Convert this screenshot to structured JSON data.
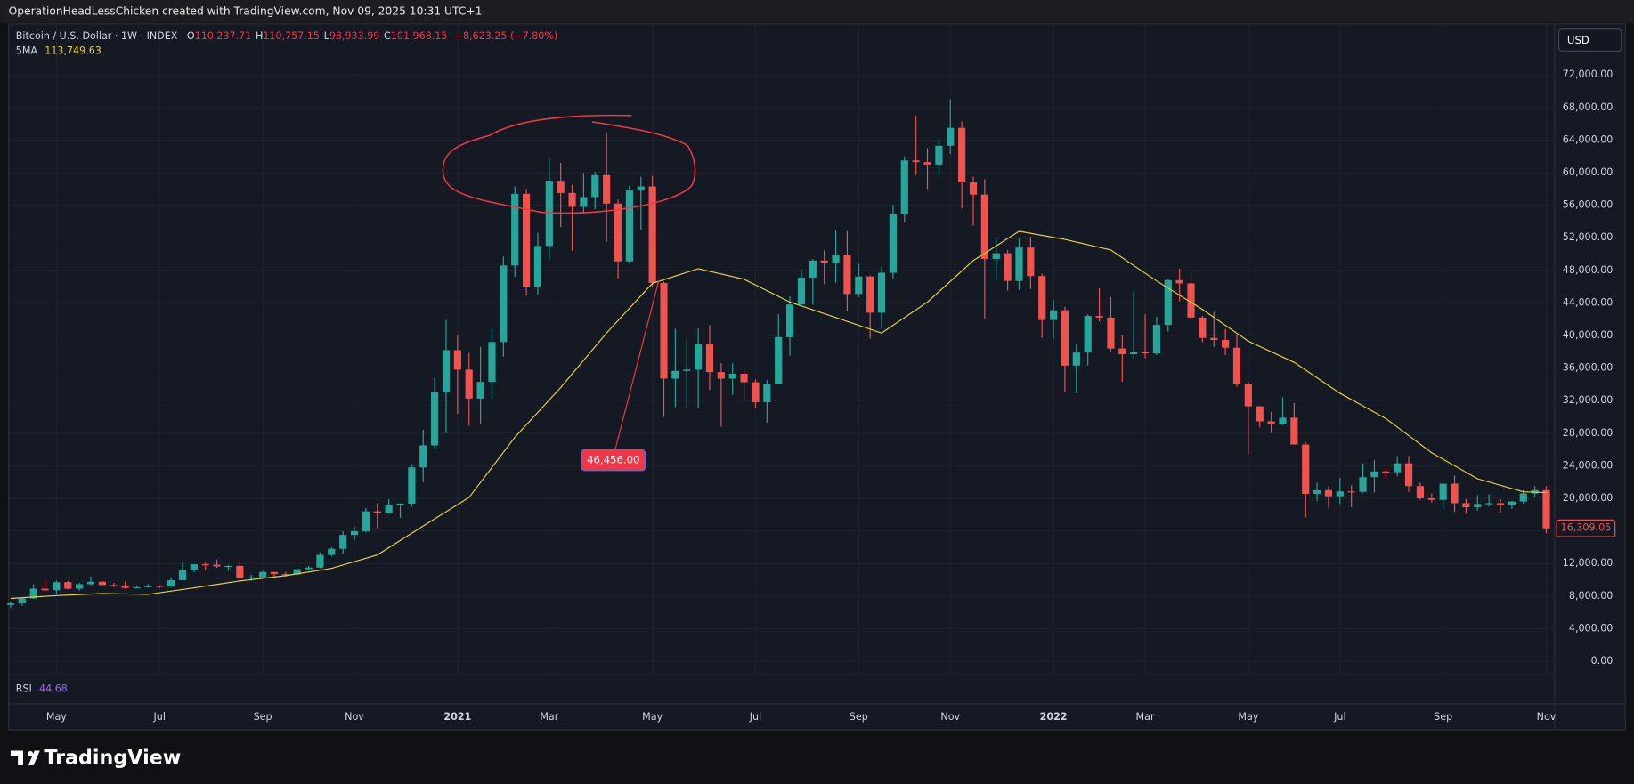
{
  "header": {
    "title": "OperationHeadLessChicken created with TradingView.com, Nov 09, 2025 10:31 UTC+1"
  },
  "footer": {
    "logo_text": "TradingView"
  },
  "chart_data": {
    "type": "candlestick",
    "symbol": "Bitcoin / U.S. Dollar · 1W · INDEX",
    "ohlc_legend": [
      {
        "key": "O",
        "value": "110,237.71"
      },
      {
        "key": "H",
        "value": "110,757.15"
      },
      {
        "key": "L",
        "value": "98,933.99"
      },
      {
        "key": "C",
        "value": "101,968.15"
      }
    ],
    "change": "−8,623.25 (−7.80%)",
    "currency": "USD",
    "rsi": {
      "name": "RSI",
      "value": "44.68"
    },
    "annotation": {
      "label": "46,456.00"
    },
    "last_price_label": "16,309.05",
    "up_color": "#26a69a",
    "down_color": "#ef5350",
    "grid": true,
    "categories": [
      null,
      null,
      null,
      null,
      "May",
      null,
      null,
      null,
      null,
      null,
      null,
      null,
      null,
      "Jul",
      null,
      null,
      null,
      null,
      null,
      null,
      null,
      null,
      "Sep",
      null,
      null,
      null,
      null,
      null,
      null,
      null,
      "Nov",
      null,
      null,
      null,
      null,
      null,
      null,
      null,
      null,
      "2021",
      null,
      null,
      null,
      null,
      null,
      null,
      null,
      "Mar",
      null,
      null,
      null,
      null,
      null,
      null,
      null,
      null,
      "May",
      null,
      null,
      null,
      null,
      null,
      null,
      null,
      null,
      "Jul",
      null,
      null,
      null,
      null,
      null,
      null,
      null,
      null,
      "Sep",
      null,
      null,
      null,
      null,
      null,
      null,
      null,
      "Nov",
      null,
      null,
      null,
      null,
      null,
      null,
      null,
      null,
      "2022",
      null,
      null,
      null,
      null,
      null,
      null,
      null,
      "Mar",
      null,
      null,
      null,
      null,
      null,
      null,
      null,
      null,
      "May",
      null,
      null,
      null,
      null,
      null,
      null,
      null,
      "Jul",
      null,
      null,
      null,
      null,
      null,
      null,
      null,
      null,
      "Sep",
      null,
      null,
      null,
      null,
      null,
      null,
      null,
      null,
      "Nov"
    ],
    "open": [
      6900,
      7100,
      7700,
      8900,
      8700,
      9700,
      8900,
      9450,
      9750,
      9350,
      9300,
      9000,
      9080,
      9240,
      9160,
      9950,
      11200,
      11900,
      11850,
      11650,
      11700,
      10250,
      10300,
      10950,
      10700,
      10650,
      11300,
      11500,
      13050,
      13800,
      15500,
      15950,
      18400,
      18200,
      19150,
      19350,
      23800,
      26500,
      33000,
      38200,
      35800,
      32250,
      34300,
      39200,
      48600,
      57400,
      46000,
      51000,
      59000,
      57500,
      55800,
      57000,
      59700,
      56200,
      49100,
      57800,
      58300,
      46450,
      34700,
      35650,
      35800,
      39000,
      35500,
      34700,
      35300,
      34250,
      31800,
      34000,
      39800,
      43800,
      47100,
      49200,
      48900,
      49900,
      45100,
      47250,
      42800,
      47700,
      54900,
      61500,
      61300,
      61000,
      63300,
      65500,
      58800,
      57300,
      49400,
      50100,
      46700,
      50800,
      47300,
      41900,
      43100,
      36300,
      37900,
      42400,
      42200,
      38400,
      37700,
      38000,
      37800,
      41300,
      46800,
      46400,
      42200,
      39700,
      39450,
      38500,
      34050,
      31300,
      29450,
      29100,
      29900,
      26600,
      20550,
      21000,
      20250,
      20850,
      20800,
      22600,
      23300,
      23200,
      24300,
      21500,
      20000,
      19800,
      21800,
      19400,
      18900,
      19300,
      19400,
      19200,
      19600,
      20600,
      21000
    ],
    "high": [
      7200,
      7750,
      9450,
      10000,
      9900,
      9850,
      9600,
      10400,
      9950,
      9600,
      9800,
      9300,
      9470,
      9300,
      10200,
      12100,
      11900,
      12100,
      12500,
      11800,
      12100,
      10600,
      11100,
      10980,
      10950,
      11450,
      11700,
      13350,
      14000,
      15950,
      16500,
      18800,
      19400,
      19900,
      19400,
      24200,
      28400,
      34800,
      41900,
      40100,
      37850,
      38600,
      40900,
      49700,
      58300,
      58000,
      52600,
      61700,
      61200,
      58500,
      60000,
      60100,
      64900,
      56700,
      58400,
      59500,
      59600,
      46600,
      40800,
      39500,
      40900,
      41300,
      36600,
      36600,
      35900,
      34600,
      34500,
      42600,
      44800,
      48100,
      49400,
      50500,
      52900,
      52800,
      48800,
      47350,
      48500,
      56000,
      62000,
      67000,
      63000,
      64300,
      69000,
      66300,
      59500,
      59200,
      51900,
      50500,
      51900,
      52100,
      47600,
      44400,
      43500,
      38900,
      42600,
      45800,
      44700,
      40000,
      45400,
      42600,
      42300,
      46900,
      48200,
      47400,
      42400,
      42900,
      40800,
      40000,
      34250,
      31300,
      30600,
      32400,
      31700,
      26900,
      21900,
      21500,
      22500,
      21600,
      24300,
      24700,
      23700,
      25200,
      25200,
      21900,
      20600,
      21800,
      22800,
      19900,
      20400,
      20500,
      19900,
      19700,
      21000,
      21500,
      21500
    ],
    "low": [
      6500,
      6800,
      7650,
      8600,
      8200,
      8800,
      8650,
      9300,
      9250,
      9100,
      8850,
      8950,
      9050,
      9000,
      9150,
      9900,
      10950,
      11150,
      11450,
      11100,
      9900,
      9850,
      10200,
      10150,
      10400,
      10550,
      11200,
      11400,
      12900,
      13200,
      14850,
      15800,
      16300,
      18100,
      17600,
      19000,
      22000,
      26000,
      28000,
      30400,
      28900,
      29200,
      32300,
      37400,
      47200,
      44900,
      45000,
      49300,
      53300,
      50400,
      54900,
      55500,
      51500,
      47000,
      48800,
      53000,
      46000,
      30000,
      31200,
      31100,
      31000,
      33300,
      28800,
      32700,
      32100,
      31100,
      29300,
      34000,
      37500,
      43800,
      43800,
      46300,
      46500,
      43000,
      44700,
      39600,
      40800,
      47000,
      53900,
      59700,
      58000,
      59500,
      62300,
      55600,
      53500,
      42000,
      46800,
      45500,
      45600,
      45700,
      39700,
      39600,
      33000,
      32900,
      36300,
      41700,
      38000,
      34300,
      37200,
      37200,
      37600,
      40500,
      44200,
      42100,
      39200,
      38600,
      37600,
      33700,
      25400,
      28700,
      28000,
      29000,
      26600,
      17600,
      19650,
      18800,
      19300,
      18900,
      20700,
      20700,
      22400,
      22700,
      20800,
      19800,
      19500,
      18600,
      18300,
      18100,
      18500,
      19000,
      18200,
      18700,
      19300,
      20100,
      15700
    ],
    "close": [
      7100,
      7700,
      8900,
      8700,
      9700,
      8900,
      9450,
      9750,
      9350,
      9300,
      9000,
      9080,
      9240,
      9160,
      9950,
      11200,
      11900,
      11850,
      11650,
      11700,
      10250,
      10300,
      10950,
      10700,
      10650,
      11300,
      11500,
      13050,
      13800,
      15500,
      15950,
      18400,
      18200,
      19150,
      19350,
      23800,
      26500,
      33000,
      38200,
      35800,
      32250,
      34300,
      39200,
      48600,
      57400,
      46000,
      51000,
      59000,
      57500,
      55800,
      57000,
      59700,
      56200,
      49100,
      57800,
      58300,
      46450,
      34700,
      35650,
      35800,
      39000,
      35500,
      34700,
      35300,
      34250,
      31800,
      34000,
      39800,
      43800,
      47100,
      49200,
      48900,
      49900,
      45100,
      47250,
      42800,
      47700,
      54900,
      61500,
      61300,
      61000,
      63300,
      65500,
      58800,
      57300,
      49400,
      50100,
      46700,
      50800,
      47300,
      41900,
      43100,
      36300,
      37900,
      42400,
      42200,
      38400,
      37700,
      38000,
      37800,
      41300,
      46800,
      46400,
      42200,
      39700,
      39450,
      38500,
      34050,
      31300,
      29450,
      29100,
      29900,
      26600,
      20550,
      21000,
      20250,
      20850,
      20800,
      22600,
      23300,
      23200,
      24300,
      21500,
      20000,
      19800,
      21800,
      19400,
      18900,
      19300,
      19400,
      19200,
      19600,
      20600,
      21000,
      16309.05
    ],
    "ma": {
      "name": "5MA",
      "legend_value": "113,749.63",
      "color": "#e6d23f",
      "x": [
        0,
        4,
        8,
        12,
        16,
        20,
        24,
        28,
        32,
        36,
        40,
        44,
        48,
        52,
        56,
        60,
        64,
        68,
        72,
        76,
        80,
        84,
        88,
        92,
        96,
        100,
        104,
        108,
        112,
        116,
        120,
        124,
        128,
        132,
        134
      ],
      "values": [
        7700,
        8050,
        8300,
        8200,
        9000,
        9850,
        10500,
        11400,
        13050,
        16600,
        20100,
        27500,
        33600,
        40300,
        46400,
        48200,
        46900,
        44100,
        42200,
        40300,
        44100,
        49200,
        52800,
        51800,
        50500,
        46700,
        43200,
        39300,
        36700,
        32900,
        29800,
        25600,
        22400,
        20800,
        20700
      ]
    },
    "ylim": [
      -1662,
      78265
    ],
    "yticks": [
      {
        "value": 0,
        "label": "0.00"
      },
      {
        "value": 4000,
        "label": "4,000.00"
      },
      {
        "value": 8000,
        "label": "8,000.00"
      },
      {
        "value": 12000,
        "label": "12,000.00"
      },
      {
        "value": 16000,
        "label": "16,000.00"
      },
      {
        "value": 20000,
        "label": "20,000.00"
      },
      {
        "value": 24000,
        "label": "24,000.00"
      },
      {
        "value": 28000,
        "label": "28,000.00"
      },
      {
        "value": 32000,
        "label": "32,000.00"
      },
      {
        "value": 36000,
        "label": "36,000.00"
      },
      {
        "value": 40000,
        "label": "40,000.00"
      },
      {
        "value": 44000,
        "label": "44,000.00"
      },
      {
        "value": 48000,
        "label": "48,000.00"
      },
      {
        "value": 52000,
        "label": "52,000.00"
      },
      {
        "value": 56000,
        "label": "56,000.00"
      },
      {
        "value": 60000,
        "label": "60,000.00"
      },
      {
        "value": 64000,
        "label": "64,000.00"
      },
      {
        "value": 68000,
        "label": "68,000.00"
      },
      {
        "value": 72000,
        "label": "72,000.00"
      }
    ]
  }
}
